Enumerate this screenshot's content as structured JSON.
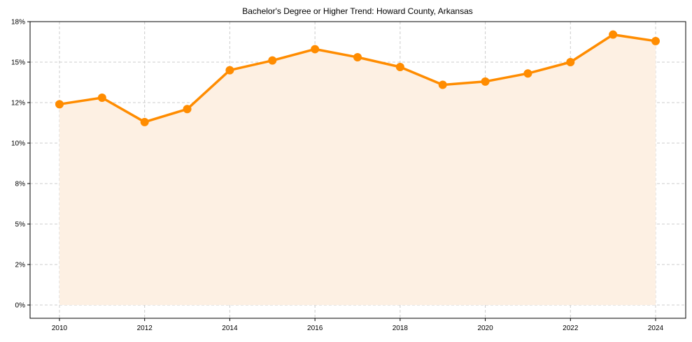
{
  "chart_data": {
    "type": "line",
    "title": "Bachelor's Degree or Higher Trend: Howard County, Arkansas",
    "xlabel": "",
    "ylabel": "",
    "x": [
      2010,
      2011,
      2012,
      2013,
      2014,
      2015,
      2016,
      2017,
      2018,
      2019,
      2020,
      2021,
      2022,
      2023,
      2024
    ],
    "series": [
      {
        "name": "Bachelor's Degree or Higher",
        "values": [
          12.4,
          12.8,
          11.3,
          12.1,
          14.5,
          15.1,
          15.8,
          15.3,
          14.7,
          13.6,
          13.8,
          14.3,
          15.0,
          16.7,
          16.3
        ],
        "color": "#ff8c00",
        "fill": "#fdf0e3",
        "marker": "circle"
      }
    ],
    "xticks": [
      2010,
      2012,
      2014,
      2016,
      2018,
      2020,
      2022,
      2024
    ],
    "yticks": [
      0,
      2.5,
      5,
      7.5,
      10,
      12.5,
      15,
      17.5
    ],
    "ytick_labels": [
      "0%",
      "2%",
      "5%",
      "8%",
      "10%",
      "12%",
      "15%",
      "18%"
    ],
    "xlim": [
      2009.3,
      2024.7
    ],
    "ylim": [
      -0.82,
      17.5
    ],
    "grid": true,
    "legend": false
  }
}
